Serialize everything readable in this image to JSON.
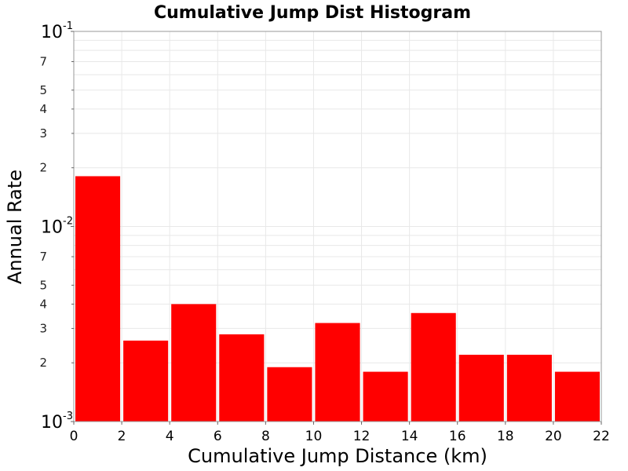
{
  "chart_data": {
    "type": "bar",
    "title": "Cumulative Jump Dist Histogram",
    "xlabel": "Cumulative Jump Distance (km)",
    "ylabel": "Annual Rate",
    "y_scale": "log",
    "xlim": [
      0,
      22
    ],
    "ylim": [
      0.001,
      0.1
    ],
    "x_ticks": [
      "0",
      "2",
      "4",
      "6",
      "8",
      "10",
      "12",
      "14",
      "16",
      "18",
      "20",
      "22"
    ],
    "y_decade_ticks": [
      {
        "value": 0.1,
        "base": "10",
        "exp": "-1"
      },
      {
        "value": 0.01,
        "base": "10",
        "exp": "-2"
      },
      {
        "value": 0.001,
        "base": "10",
        "exp": "-3"
      }
    ],
    "y_minor_ticks": [
      {
        "value": 0.07,
        "label": "7"
      },
      {
        "value": 0.05,
        "label": "5"
      },
      {
        "value": 0.04,
        "label": "4"
      },
      {
        "value": 0.03,
        "label": "3"
      },
      {
        "value": 0.02,
        "label": "2"
      },
      {
        "value": 0.007,
        "label": "7"
      },
      {
        "value": 0.005,
        "label": "5"
      },
      {
        "value": 0.004,
        "label": "4"
      },
      {
        "value": 0.003,
        "label": "3"
      },
      {
        "value": 0.002,
        "label": "2"
      }
    ],
    "bars": [
      {
        "x0": 0,
        "x1": 2,
        "value": 0.0181
      },
      {
        "x0": 2,
        "x1": 4,
        "value": 0.0026
      },
      {
        "x0": 4,
        "x1": 6,
        "value": 0.004
      },
      {
        "x0": 6,
        "x1": 8,
        "value": 0.0028
      },
      {
        "x0": 8,
        "x1": 10,
        "value": 0.0019
      },
      {
        "x0": 10,
        "x1": 12,
        "value": 0.0032
      },
      {
        "x0": 12,
        "x1": 14,
        "value": 0.0018
      },
      {
        "x0": 14,
        "x1": 16,
        "value": 0.0036
      },
      {
        "x0": 16,
        "x1": 18,
        "value": 0.0022
      },
      {
        "x0": 18,
        "x1": 20,
        "value": 0.0022
      },
      {
        "x0": 20,
        "x1": 22,
        "value": 0.0018
      }
    ],
    "bar_color": "#ff0000",
    "grid": true,
    "grid_color": "#e8e8e8"
  }
}
